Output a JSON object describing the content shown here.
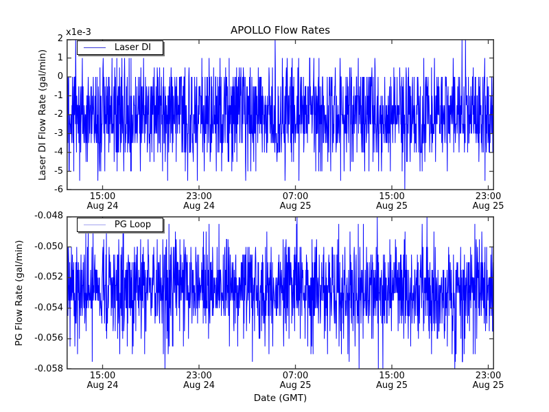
{
  "figure": {
    "background": "#ffffff",
    "spine_color": "#3a3a3a",
    "text_color": "#000000"
  },
  "chart_data": [
    {
      "type": "line",
      "title": "APOLLO Flow Rates",
      "ylabel": "Laser DI Flow Rate (gal/min)",
      "xlabel": "",
      "y_offset_text": "x1e-3",
      "legend": {
        "label": "Laser DI",
        "position": "upper left",
        "sample_color": "#3535d6"
      },
      "series": [
        {
          "name": "Laser DI",
          "color": "#0000ff"
        }
      ],
      "grid": false,
      "ylim": [
        -6,
        2
      ],
      "ytick_values": [
        2,
        1,
        0,
        -1,
        -2,
        -3,
        -4,
        -5,
        -6
      ],
      "ytick_labels": [
        "2",
        "1",
        "0",
        "-1",
        "-2",
        "-3",
        "-4",
        "-5",
        "-6"
      ],
      "xtick_labels": [
        [
          "15:00",
          "Aug 24"
        ],
        [
          "23:00",
          "Aug 24"
        ],
        [
          "07:00",
          "Aug 25"
        ],
        [
          "15:00",
          "Aug 25"
        ],
        [
          "23:00",
          "Aug 25"
        ]
      ],
      "noise": {
        "description": "quantized noisy flow signal, dense core -2e-3 to -3e-3, spikes up to 2e-3 and down to -6e-3",
        "seed": 7,
        "n_points": 1600,
        "levels": [
          1,
          0.5,
          0,
          -0.5,
          -1,
          -1.5,
          -2,
          -2.5,
          -3,
          -3.5,
          -4,
          -4.5,
          -5,
          -5.5
        ],
        "weights": [
          0.018,
          0.022,
          0.09,
          0.075,
          0.095,
          0.09,
          0.13,
          0.15,
          0.13,
          0.08,
          0.06,
          0.02,
          0.025,
          0.005
        ],
        "forced": [
          {
            "frac": 0.021,
            "value": 2
          },
          {
            "frac": 0.488,
            "value": 2
          },
          {
            "frac": 0.925,
            "value": 2
          },
          {
            "frac": 0.933,
            "value": 2
          },
          {
            "frac": 0.791,
            "value": -6
          }
        ]
      }
    },
    {
      "type": "line",
      "title": "",
      "ylabel": "PG Flow Rate (gal/min)",
      "xlabel": "Date (GMT)",
      "y_offset_text": "",
      "legend": {
        "label": "PG Loop",
        "position": "upper left",
        "sample_color": "#a2a2ef"
      },
      "series": [
        {
          "name": "PG Loop",
          "color": "#0000ff"
        }
      ],
      "grid": false,
      "ylim": [
        -0.058,
        -0.048
      ],
      "ytick_values": [
        -0.048,
        -0.05,
        -0.052,
        -0.054,
        -0.056,
        -0.058
      ],
      "ytick_labels": [
        "-0.048",
        "-0.050",
        "-0.052",
        "-0.054",
        "-0.056",
        "-0.058"
      ],
      "xtick_labels": [
        [
          "15:00",
          "Aug 24"
        ],
        [
          "23:00",
          "Aug 24"
        ],
        [
          "07:00",
          "Aug 25"
        ],
        [
          "15:00",
          "Aug 25"
        ],
        [
          "23:00",
          "Aug 25"
        ]
      ],
      "noise": {
        "description": "quantized noisy flow signal, dense core -0.052 to -0.0545, spikes up to -0.048 and down to -0.058",
        "seed": 19,
        "n_points": 1600,
        "levels": [
          -0.0485,
          -0.049,
          -0.0495,
          -0.05,
          -0.0505,
          -0.051,
          -0.0515,
          -0.052,
          -0.0525,
          -0.053,
          -0.0535,
          -0.054,
          -0.0545,
          -0.055,
          -0.0555,
          -0.056,
          -0.0565,
          -0.057,
          -0.0575
        ],
        "weights": [
          0.006,
          0.01,
          0.018,
          0.045,
          0.055,
          0.065,
          0.065,
          0.1,
          0.115,
          0.12,
          0.115,
          0.09,
          0.06,
          0.04,
          0.025,
          0.02,
          0.015,
          0.01,
          0.005
        ],
        "forced": [
          {
            "frac": 0.539,
            "value": -0.048
          },
          {
            "frac": 0.727,
            "value": -0.048
          },
          {
            "frac": 0.843,
            "value": -0.048
          },
          {
            "frac": 0.23,
            "value": -0.058
          },
          {
            "frac": 0.684,
            "value": -0.058
          },
          {
            "frac": 0.729,
            "value": -0.058
          },
          {
            "frac": 0.74,
            "value": -0.058
          },
          {
            "frac": 0.908,
            "value": -0.058
          }
        ]
      }
    }
  ]
}
